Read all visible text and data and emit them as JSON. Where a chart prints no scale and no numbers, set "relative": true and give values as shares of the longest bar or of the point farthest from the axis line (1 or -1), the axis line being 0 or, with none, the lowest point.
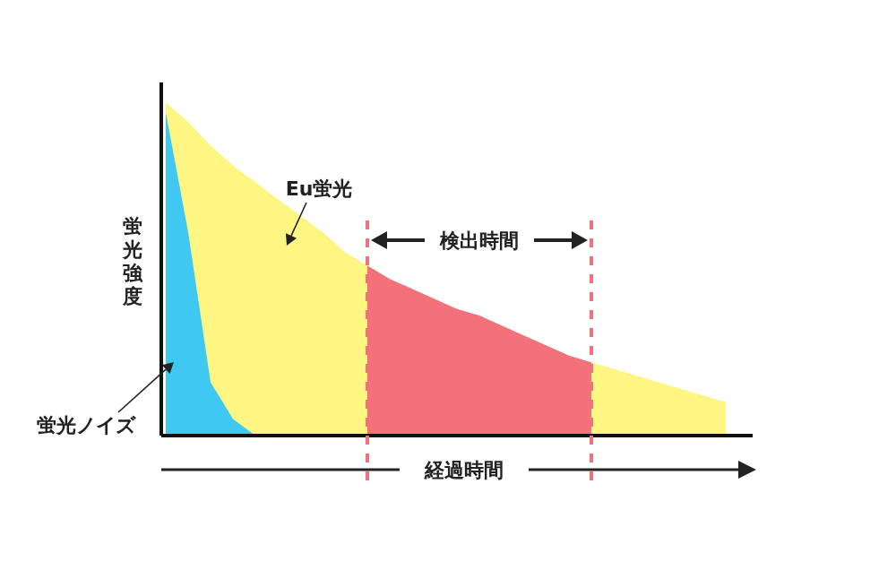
{
  "chart_data": {
    "type": "area",
    "relative": true,
    "xlabel": "経過時間",
    "ylabel": "蛍光強度",
    "categories": [
      null,
      null,
      null,
      null,
      null,
      null,
      null,
      null,
      null,
      null,
      null,
      null,
      null,
      null,
      null,
      null,
      null,
      null,
      null,
      null,
      null,
      null,
      null,
      null,
      null,
      null
    ],
    "series": [
      {
        "name": "Eu蛍光",
        "color": "#fff582",
        "values": [
          1.0,
          0.94,
          0.87,
          0.81,
          0.76,
          0.71,
          0.66,
          0.61,
          0.55,
          0.51,
          null,
          null,
          null,
          null,
          null,
          null,
          null,
          null,
          null,
          0.22,
          0.2,
          0.18,
          0.16,
          0.14,
          0.12,
          0.1
        ]
      },
      {
        "color": "#f2717b",
        "values": [
          null,
          null,
          null,
          null,
          null,
          null,
          null,
          null,
          null,
          0.51,
          0.47,
          0.44,
          0.41,
          0.38,
          0.36,
          0.33,
          0.3,
          0.27,
          0.24,
          0.22,
          null,
          null,
          null,
          null,
          null,
          null
        ]
      },
      {
        "name": "蛍光ノイズ",
        "color": "#3fc9f2",
        "values": [
          0.97,
          0.61,
          0.16,
          0.05,
          0,
          null,
          null,
          null,
          null,
          null,
          null,
          null,
          null,
          null,
          null,
          null,
          null,
          null,
          null,
          null,
          null,
          null,
          null,
          null,
          null,
          null
        ]
      }
    ],
    "annotations": [
      "検出時間"
    ],
    "legend": false
  }
}
